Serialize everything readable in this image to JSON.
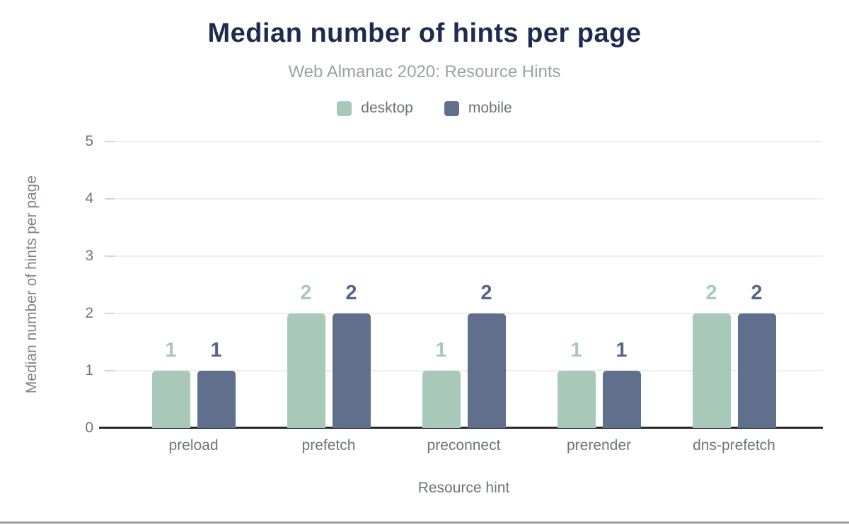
{
  "chart_data": {
    "type": "bar",
    "title": "Median number of hints per page",
    "subtitle": "Web Almanac 2020: Resource Hints",
    "xlabel": "Resource hint",
    "ylabel": "Median number of hints per page",
    "categories": [
      "preload",
      "prefetch",
      "preconnect",
      "prerender",
      "dns-prefetch"
    ],
    "series": [
      {
        "name": "desktop",
        "color": "#a8c9ba",
        "label_color": "#a8c9ba",
        "values": [
          1,
          2,
          1,
          1,
          2
        ]
      },
      {
        "name": "mobile",
        "color": "#60708c",
        "label_color": "#55668a",
        "values": [
          1,
          2,
          2,
          1,
          2
        ]
      }
    ],
    "ylim": [
      0,
      5
    ],
    "yticks": [
      0,
      1,
      2,
      3,
      4,
      5
    ],
    "grid": true,
    "legend_position": "top",
    "bar_value_labels": true
  },
  "theme": {
    "title_color": "#1e2b50",
    "subtitle_color": "#9ca1a7",
    "axis_text_color": "#72767c",
    "grid_color": "#eeeeee",
    "tick_color": "#d4d4d4",
    "axis_line_color": "#2a2a2a",
    "bottom_bar_color": "#9f9f9f"
  }
}
